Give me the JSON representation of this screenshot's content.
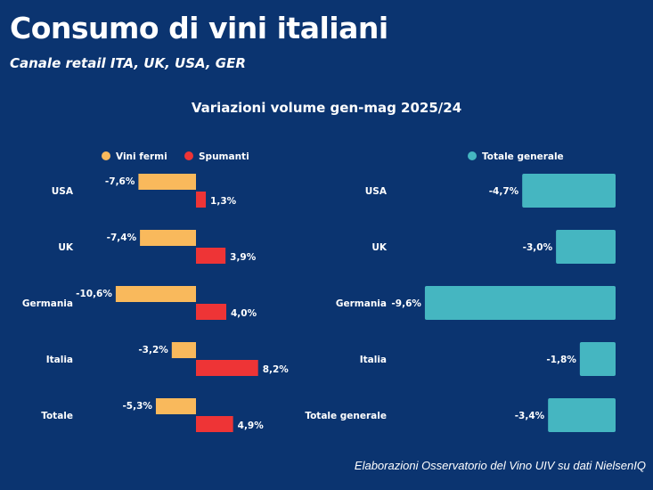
{
  "title": "Consumo di vini italiani",
  "subtitle": "Canale retail ITA, UK, USA, GER",
  "footer": "Elaborazioni Osservatorio del Vino UIV su dati NielsenIQ",
  "chart_data": [
    {
      "type": "bar",
      "orientation": "horizontal",
      "title": "Variazioni volume gen-mag 2025/24",
      "categories": [
        "USA",
        "UK",
        "Germania",
        "Italia",
        "Totale"
      ],
      "legend_position": "top",
      "series": [
        {
          "name": "Vini fermi",
          "color": "#f9b95c",
          "values": [
            -7.6,
            -7.4,
            -10.6,
            -3.2,
            -5.3
          ],
          "labels": [
            "-7,6%",
            "-7,4%",
            "-10,6%",
            "-3,2%",
            "-5,3%"
          ]
        },
        {
          "name": "Spumanti",
          "color": "#ee3436",
          "values": [
            1.3,
            3.9,
            4.0,
            8.2,
            4.9
          ],
          "labels": [
            "1,3%",
            "3,9%",
            "4,0%",
            "8,2%",
            "4,9%"
          ]
        }
      ],
      "grid": false
    },
    {
      "type": "bar",
      "orientation": "horizontal",
      "categories": [
        "USA",
        "UK",
        "Germania",
        "Italia",
        "Totale generale"
      ],
      "legend_position": "top",
      "series": [
        {
          "name": "Totale generale",
          "color": "#45b6c1",
          "values": [
            -4.7,
            -3.0,
            -9.6,
            -1.8,
            -3.4
          ],
          "labels": [
            "-4,7%",
            "-3,0%",
            "-9,6%",
            "-1,8%",
            "-3,4%"
          ]
        }
      ],
      "grid": false
    }
  ]
}
